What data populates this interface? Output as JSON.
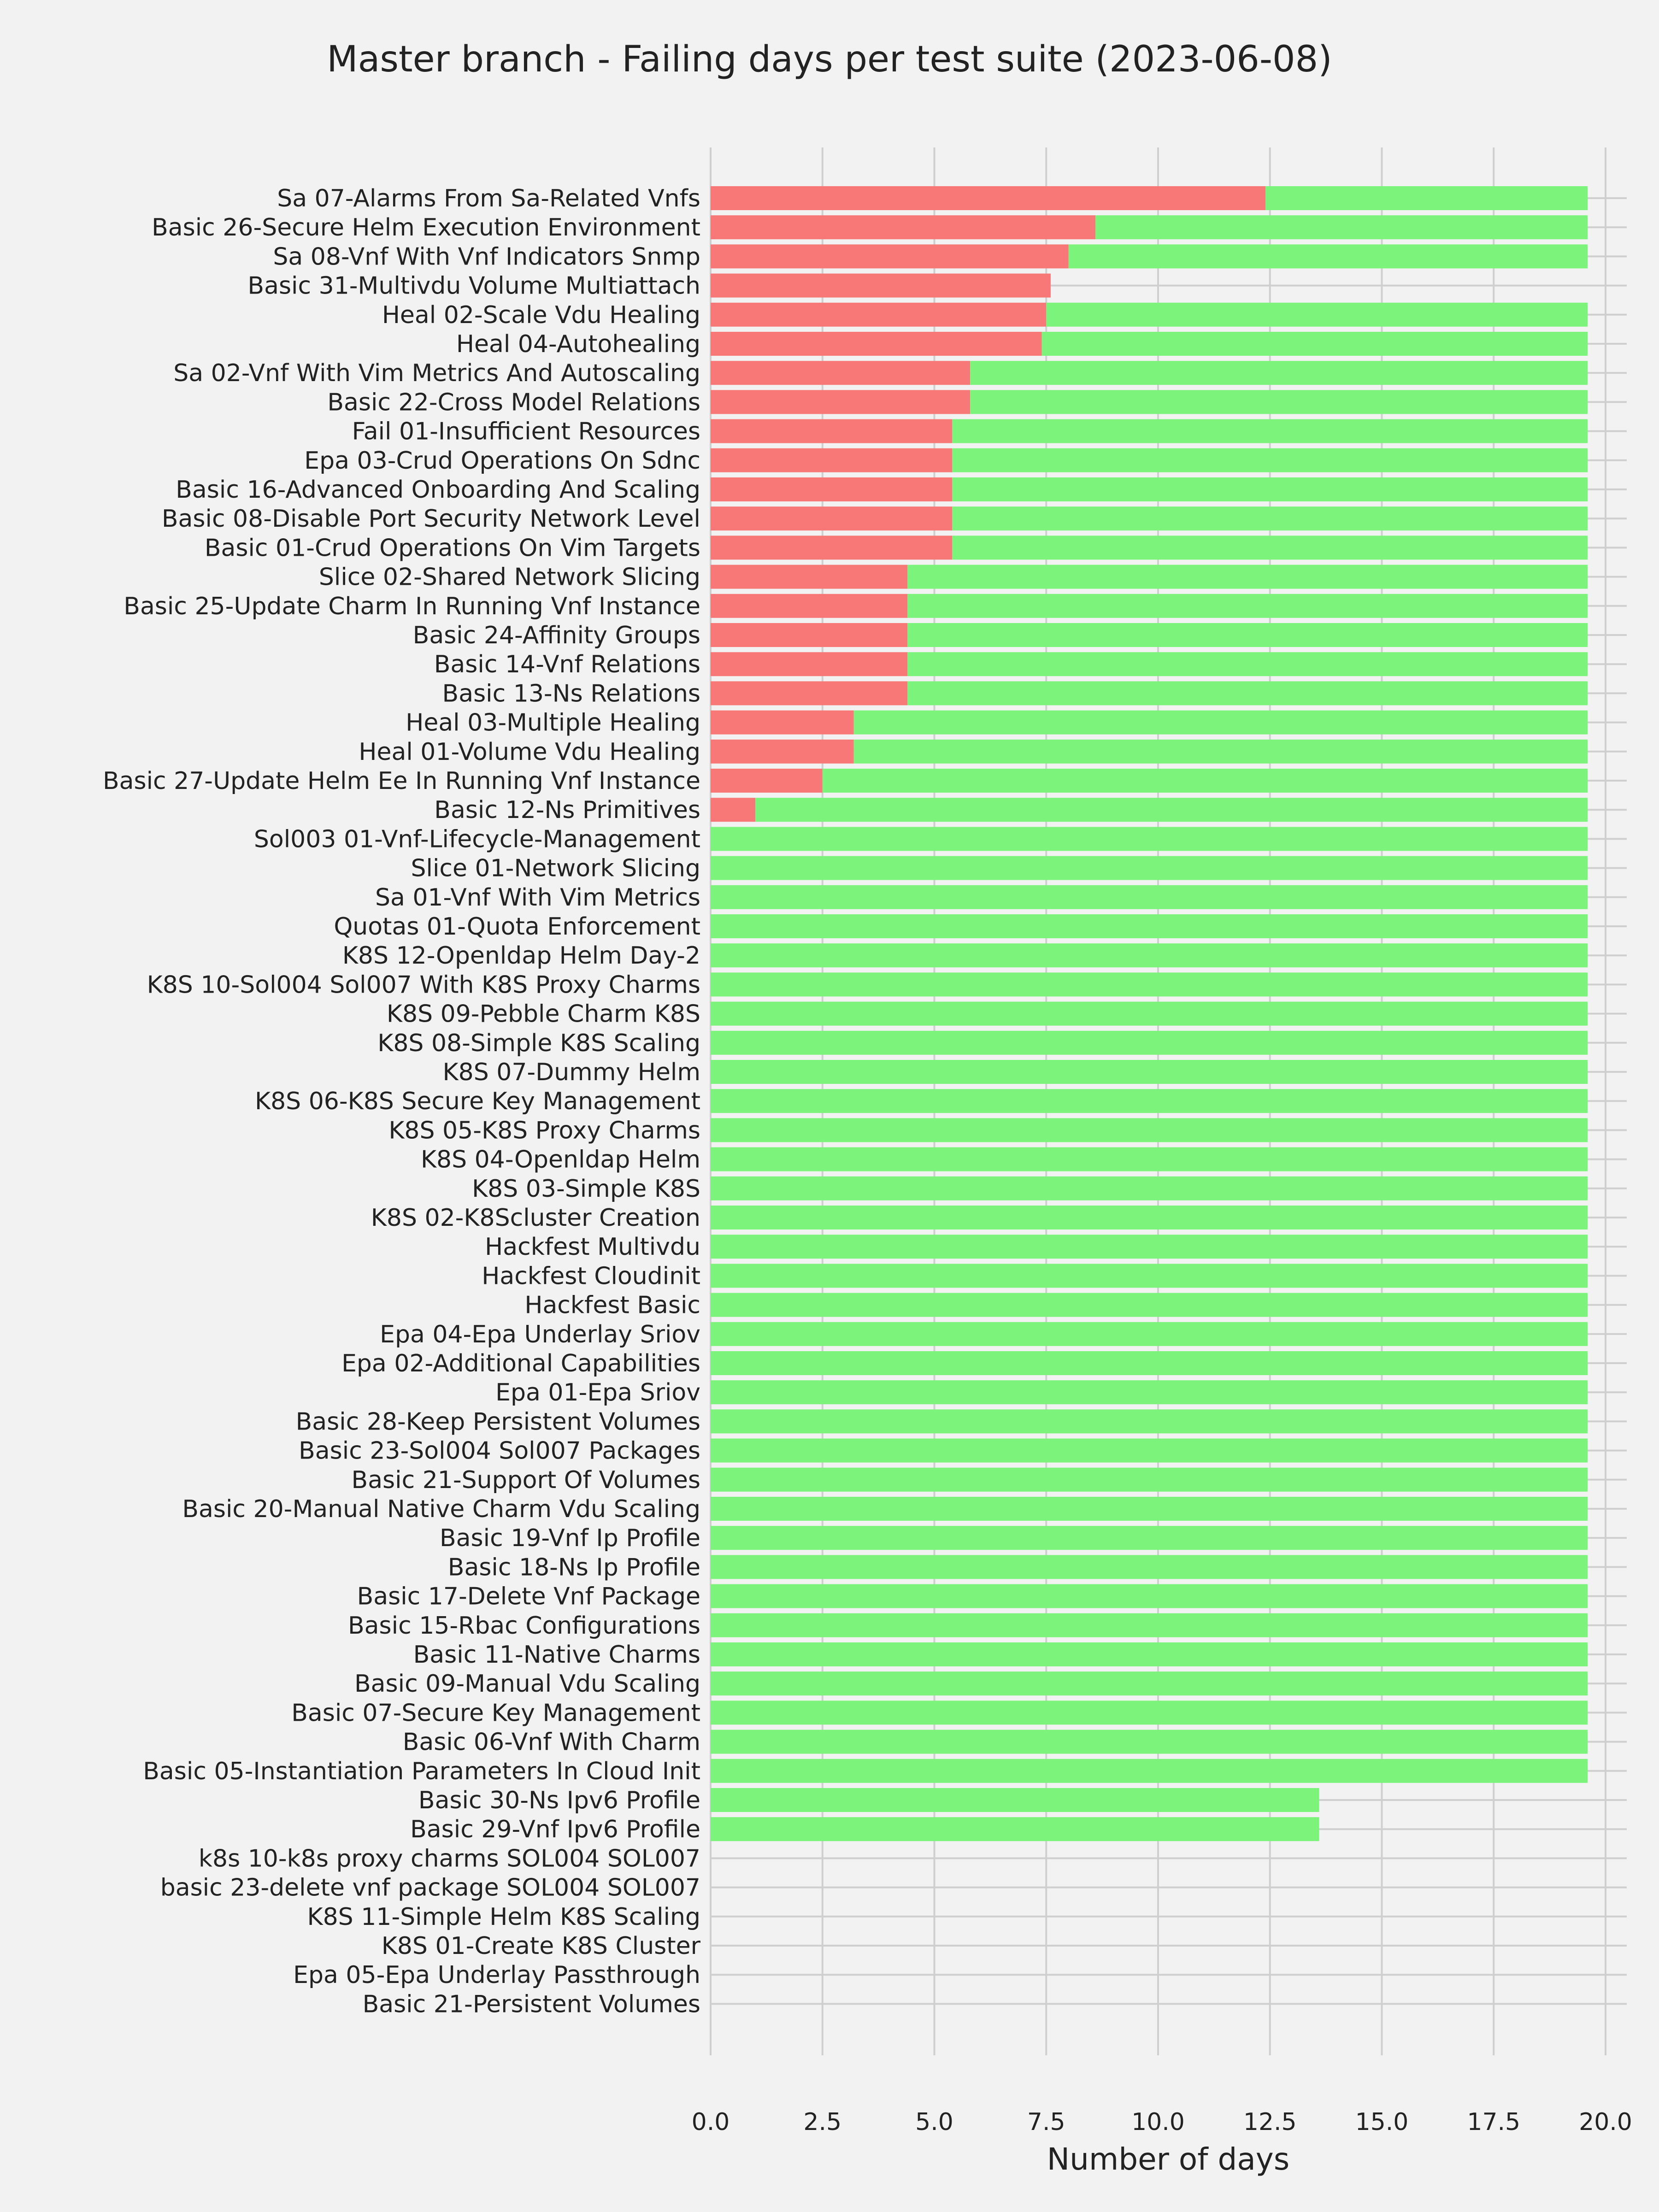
{
  "chart_data": {
    "type": "bar",
    "orientation": "horizontal",
    "stacked": true,
    "title": "Master branch - Failing days per test suite (2023-06-08)",
    "xlabel": "Number of days",
    "ylabel": "",
    "xlim": [
      0,
      20.5
    ],
    "xticks": [
      "0.0",
      "2.5",
      "5.0",
      "7.5",
      "10.0",
      "12.5",
      "15.0",
      "17.5",
      "20.0"
    ],
    "grid": true,
    "legend": "none",
    "colors": {
      "failing": "#f87878",
      "passing": "#7cf47c",
      "background": "#f2f2f2",
      "grid": "#cfcfcf"
    },
    "categories": [
      "Sa 07-Alarms From Sa-Related Vnfs",
      "Basic 26-Secure Helm Execution Environment",
      "Sa 08-Vnf With Vnf Indicators Snmp",
      "Basic 31-Multivdu Volume Multiattach",
      "Heal 02-Scale Vdu Healing",
      "Heal 04-Autohealing",
      "Sa 02-Vnf With Vim Metrics And Autoscaling",
      "Basic 22-Cross Model Relations",
      "Fail 01-Insufficient Resources",
      "Epa 03-Crud Operations On Sdnc",
      "Basic 16-Advanced Onboarding And Scaling",
      "Basic 08-Disable Port Security Network Level",
      "Basic 01-Crud Operations On Vim Targets",
      "Slice 02-Shared Network Slicing",
      "Basic 25-Update Charm In Running Vnf Instance",
      "Basic 24-Affinity Groups",
      "Basic 14-Vnf Relations",
      "Basic 13-Ns Relations",
      "Heal 03-Multiple Healing",
      "Heal 01-Volume Vdu Healing",
      "Basic 27-Update Helm Ee In Running Vnf Instance",
      "Basic 12-Ns Primitives",
      "Sol003 01-Vnf-Lifecycle-Management",
      "Slice 01-Network Slicing",
      "Sa 01-Vnf With Vim Metrics",
      "Quotas 01-Quota Enforcement",
      "K8S 12-Openldap Helm Day-2",
      "K8S 10-Sol004 Sol007 With K8S Proxy Charms",
      "K8S 09-Pebble Charm K8S",
      "K8S 08-Simple K8S Scaling",
      "K8S 07-Dummy Helm",
      "K8S 06-K8S Secure Key Management",
      "K8S 05-K8S Proxy Charms",
      "K8S 04-Openldap Helm",
      "K8S 03-Simple K8S",
      "K8S 02-K8Scluster Creation",
      "Hackfest Multivdu",
      "Hackfest Cloudinit",
      "Hackfest Basic",
      "Epa 04-Epa Underlay Sriov",
      "Epa 02-Additional Capabilities",
      "Epa 01-Epa Sriov",
      "Basic 28-Keep Persistent Volumes",
      "Basic 23-Sol004 Sol007 Packages",
      "Basic 21-Support Of Volumes",
      "Basic 20-Manual Native Charm Vdu Scaling",
      "Basic 19-Vnf Ip Profile",
      "Basic 18-Ns Ip Profile",
      "Basic 17-Delete Vnf Package",
      "Basic 15-Rbac Configurations",
      "Basic 11-Native Charms",
      "Basic 09-Manual Vdu Scaling",
      "Basic 07-Secure Key Management",
      "Basic 06-Vnf With Charm",
      "Basic 05-Instantiation Parameters In Cloud Init",
      "Basic 30-Ns Ipv6 Profile",
      "Basic 29-Vnf Ipv6 Profile",
      "k8s 10-k8s proxy charms SOL004 SOL007",
      "basic 23-delete vnf package SOL004 SOL007",
      "K8S 11-Simple Helm K8S Scaling",
      "K8S 01-Create K8S Cluster",
      "Epa 05-Epa Underlay Passthrough",
      "Basic 21-Persistent Volumes"
    ],
    "series": [
      {
        "key": "failing",
        "values": [
          12.4,
          8.6,
          8.0,
          7.6,
          7.5,
          7.4,
          5.8,
          5.8,
          5.4,
          5.4,
          5.4,
          5.4,
          5.4,
          4.4,
          4.4,
          4.4,
          4.4,
          4.4,
          3.2,
          3.2,
          2.5,
          1.0,
          0,
          0,
          0,
          0,
          0,
          0,
          0,
          0,
          0,
          0,
          0,
          0,
          0,
          0,
          0,
          0,
          0,
          0,
          0,
          0,
          0,
          0,
          0,
          0,
          0,
          0,
          0,
          0,
          0,
          0,
          0,
          0,
          0,
          0,
          0,
          0,
          0,
          0,
          0,
          0,
          0
        ]
      },
      {
        "key": "passing",
        "values": [
          7.2,
          11.0,
          11.6,
          0,
          12.1,
          12.2,
          13.8,
          13.8,
          14.2,
          14.2,
          14.2,
          14.2,
          14.2,
          15.2,
          15.2,
          15.2,
          15.2,
          15.2,
          16.4,
          16.4,
          17.1,
          18.6,
          19.6,
          19.6,
          19.6,
          19.6,
          19.6,
          19.6,
          19.6,
          19.6,
          19.6,
          19.6,
          19.6,
          19.6,
          19.6,
          19.6,
          19.6,
          19.6,
          19.6,
          19.6,
          19.6,
          19.6,
          19.6,
          19.6,
          19.6,
          19.6,
          19.6,
          19.6,
          19.6,
          19.6,
          19.6,
          19.6,
          19.6,
          19.6,
          19.6,
          13.6,
          13.6,
          0,
          0,
          0,
          0,
          0,
          0
        ]
      }
    ]
  }
}
